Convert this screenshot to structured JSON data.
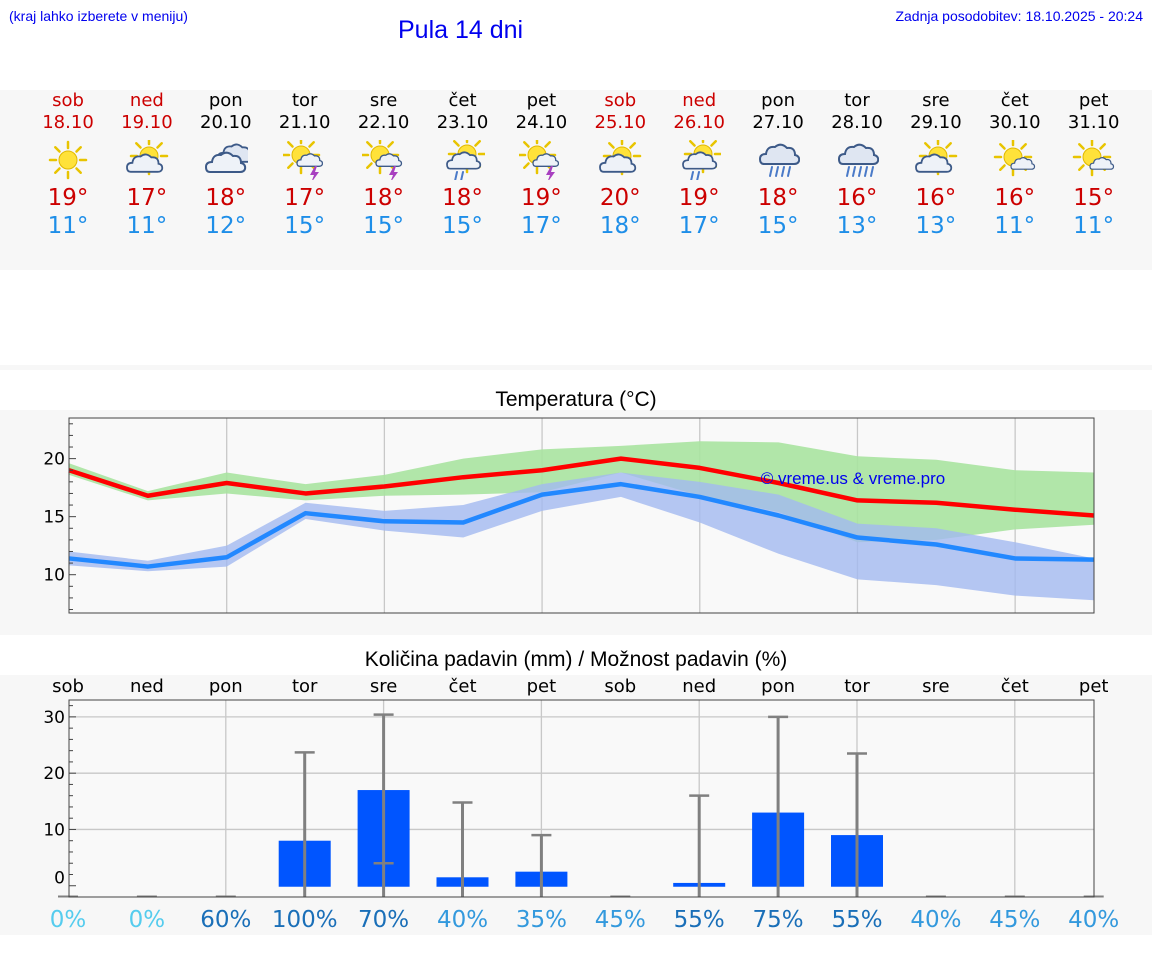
{
  "header": {
    "location_hint": "(kraj lahko izberete v meniju)",
    "title": "Pula 14 dni",
    "updated": "Zadnja posodobitev: 18.10.2025 - 20:24"
  },
  "colors": {
    "link": "#0000ee",
    "weekend": "#cc0000",
    "tmax": "#ff0000",
    "tmin": "#2288ff",
    "tmax_band": "#a8e3a0",
    "tmin_band": "#a3b9f0",
    "bar": "#0055ff",
    "errbar": "#808080"
  },
  "forecast": [
    {
      "day": "sob",
      "date": "18.10",
      "weekend": true,
      "icon": "sun-icon",
      "tmax": "19°",
      "tmin": "11°"
    },
    {
      "day": "ned",
      "date": "19.10",
      "weekend": true,
      "icon": "sun-cloud-icon",
      "tmax": "17°",
      "tmin": "11°"
    },
    {
      "day": "pon",
      "date": "20.10",
      "weekend": false,
      "icon": "cloudy-icon",
      "tmax": "18°",
      "tmin": "12°"
    },
    {
      "day": "tor",
      "date": "21.10",
      "weekend": false,
      "icon": "sun-cloud-thunder-icon",
      "tmax": "17°",
      "tmin": "15°"
    },
    {
      "day": "sre",
      "date": "22.10",
      "weekend": false,
      "icon": "sun-cloud-thunder-icon",
      "tmax": "18°",
      "tmin": "15°"
    },
    {
      "day": "čet",
      "date": "23.10",
      "weekend": false,
      "icon": "sun-cloud-rain-icon",
      "tmax": "18°",
      "tmin": "15°"
    },
    {
      "day": "pet",
      "date": "24.10",
      "weekend": false,
      "icon": "sun-cloud-thunder-icon",
      "tmax": "19°",
      "tmin": "17°"
    },
    {
      "day": "sob",
      "date": "25.10",
      "weekend": true,
      "icon": "sun-cloud-icon",
      "tmax": "20°",
      "tmin": "18°"
    },
    {
      "day": "ned",
      "date": "26.10",
      "weekend": true,
      "icon": "sun-cloud-rain-icon",
      "tmax": "19°",
      "tmin": "17°"
    },
    {
      "day": "pon",
      "date": "27.10",
      "weekend": false,
      "icon": "cloud-rain-icon",
      "tmax": "18°",
      "tmin": "15°"
    },
    {
      "day": "tor",
      "date": "28.10",
      "weekend": false,
      "icon": "cloud-heavy-rain-icon",
      "tmax": "16°",
      "tmin": "13°"
    },
    {
      "day": "sre",
      "date": "29.10",
      "weekend": false,
      "icon": "sun-cloud-icon",
      "tmax": "16°",
      "tmin": "13°"
    },
    {
      "day": "čet",
      "date": "30.10",
      "weekend": false,
      "icon": "sun-small-cloud-icon",
      "tmax": "16°",
      "tmin": "11°"
    },
    {
      "day": "pet",
      "date": "31.10",
      "weekend": false,
      "icon": "sun-small-cloud-icon",
      "tmax": "15°",
      "tmin": "11°"
    }
  ],
  "chart_data": [
    {
      "type": "line",
      "title": "Temperatura (°C)",
      "watermark": "© vreme.us & vreme.pro",
      "x": [
        0,
        1,
        2,
        3,
        4,
        5,
        6,
        7,
        8,
        9,
        10,
        11,
        12,
        13
      ],
      "ylim": [
        6.7,
        23.5
      ],
      "yticks": [
        10,
        15,
        20
      ],
      "grid": true,
      "series": [
        {
          "name": "max",
          "values": [
            19.0,
            16.8,
            17.9,
            17.0,
            17.6,
            18.4,
            19.0,
            20.0,
            19.2,
            17.9,
            16.4,
            16.2,
            15.6,
            15.1
          ]
        },
        {
          "name": "max_upper",
          "values": [
            19.6,
            17.2,
            18.8,
            17.8,
            18.6,
            20.0,
            20.8,
            21.1,
            21.5,
            21.4,
            20.2,
            19.9,
            19.0,
            18.8
          ]
        },
        {
          "name": "max_lower",
          "values": [
            18.6,
            16.4,
            17.0,
            16.4,
            16.8,
            16.9,
            17.1,
            18.8,
            16.8,
            15.4,
            12.8,
            13.0,
            13.9,
            14.3
          ]
        },
        {
          "name": "min",
          "values": [
            11.4,
            10.7,
            11.5,
            15.3,
            14.6,
            14.5,
            16.9,
            17.8,
            16.7,
            15.1,
            13.2,
            12.6,
            11.4,
            11.3
          ]
        },
        {
          "name": "min_upper",
          "values": [
            12.0,
            11.2,
            12.5,
            16.2,
            15.5,
            16.0,
            17.8,
            18.8,
            18.0,
            16.9,
            14.4,
            14.0,
            12.8,
            11.4
          ]
        },
        {
          "name": "min_lower",
          "values": [
            10.8,
            10.3,
            10.7,
            14.8,
            13.8,
            13.2,
            15.5,
            16.7,
            14.5,
            11.8,
            9.6,
            9.1,
            8.2,
            7.8
          ]
        }
      ]
    },
    {
      "type": "bar",
      "title": "Količina padavin (mm) / Možnost padavin (%)",
      "categories": [
        "sob",
        "ned",
        "pon",
        "tor",
        "sre",
        "čet",
        "pet",
        "sob",
        "ned",
        "pon",
        "tor",
        "sre",
        "čet",
        "pet"
      ],
      "values": [
        0,
        0,
        0,
        8.0,
        17.0,
        1.5,
        2.5,
        0,
        0.5,
        13.0,
        9.0,
        0,
        0,
        0
      ],
      "err_low": [
        0,
        0,
        0,
        0,
        4.0,
        0,
        0,
        0,
        0,
        0,
        0,
        0,
        0,
        0
      ],
      "err_high": [
        0,
        0,
        0,
        23.7,
        30.4,
        14.8,
        9.0,
        0,
        16.0,
        30.0,
        23.5,
        0,
        0,
        0
      ],
      "probability": [
        "0%",
        "0%",
        "60%",
        "100%",
        "70%",
        "40%",
        "35%",
        "45%",
        "55%",
        "75%",
        "55%",
        "40%",
        "45%",
        "40%"
      ],
      "prob_colors": [
        "#55ccee",
        "#55ccee",
        "#1a6fb8",
        "#1a6fb8",
        "#1a6fb8",
        "#3399dd",
        "#3399dd",
        "#3399dd",
        "#1a6fb8",
        "#1a6fb8",
        "#1a6fb8",
        "#3399dd",
        "#3399dd",
        "#3399dd"
      ],
      "ylim": [
        -2,
        33
      ],
      "yticks": [
        0,
        10,
        20,
        30
      ],
      "grid": true
    }
  ]
}
